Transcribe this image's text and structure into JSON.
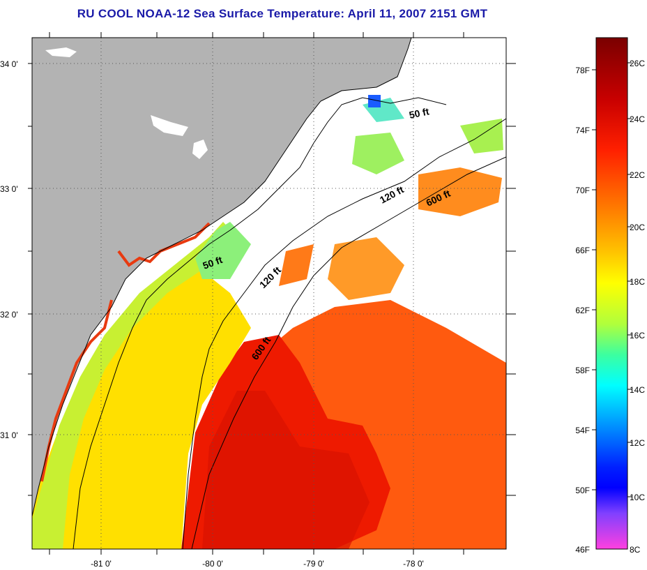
{
  "title": "RU COOL  NOAA-12  Sea Surface Temperature:  April 11, 2007 2151 GMT",
  "map": {
    "lat_labels": [
      "34 0'",
      "33 0'",
      "32 0'",
      "31 0'"
    ],
    "lon_labels": [
      "-81 0'",
      "-80 0'",
      "-79 0'",
      "-78 0'"
    ],
    "grid": true,
    "contour_labels": {
      "c50_north": "50 ft",
      "c120_north": "120 ft",
      "c600_north": "600 ft",
      "c50_south": "50 ft",
      "c120_south": "120 ft",
      "c600_south": "600 ft"
    },
    "colors": {
      "land": "#b3b3b3",
      "cloud": "#ffffff",
      "contour": "#000000"
    }
  },
  "colorbar": {
    "fahrenheit_labels": [
      "78F",
      "74F",
      "70F",
      "66F",
      "62F",
      "58F",
      "54F",
      "50F",
      "46F"
    ],
    "celsius_labels": [
      "26C",
      "24C",
      "22C",
      "20C",
      "18C",
      "16C",
      "14C",
      "12C",
      "10C",
      "8C"
    ],
    "scale_colors": [
      "#7a0000",
      "#c80000",
      "#ff2000",
      "#ff7800",
      "#ffc400",
      "#ffff00",
      "#b0ff3c",
      "#3cffa0",
      "#00ffff",
      "#0090ff",
      "#0020ff",
      "#0000ff",
      "#8040ff",
      "#ff40e0"
    ]
  }
}
